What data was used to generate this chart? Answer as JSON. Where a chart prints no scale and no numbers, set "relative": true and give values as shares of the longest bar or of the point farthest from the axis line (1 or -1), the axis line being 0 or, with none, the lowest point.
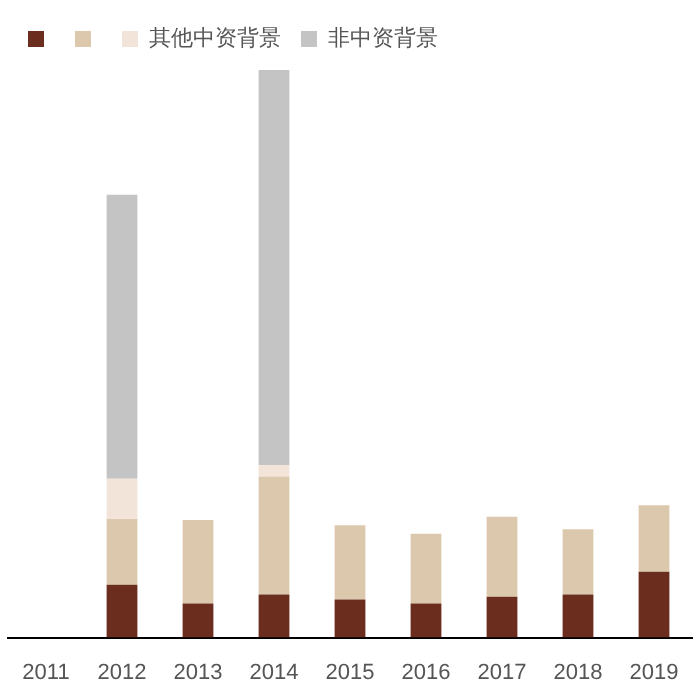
{
  "chart_data": {
    "type": "bar",
    "stacked": true,
    "relative": true,
    "legend": "top",
    "grid": false,
    "categories": [
      "2011",
      "2012",
      "2013",
      "2014",
      "2015",
      "2016",
      "2017",
      "2018",
      "2019"
    ],
    "series": [
      {
        "color": "#6b2e1e",
        "values": [
          0,
          0.093,
          0.06,
          0.076,
          0.067,
          0.06,
          0.072,
          0.076,
          0.116
        ]
      },
      {
        "color": "#dcc8ad",
        "values": [
          0,
          0.116,
          0.147,
          0.208,
          0.131,
          0.123,
          0.141,
          0.115,
          0.117
        ]
      },
      {
        "name": "其他中资背景",
        "color": "#f3e4d9",
        "values": [
          0,
          0.071,
          0,
          0.02,
          0,
          0,
          0,
          0,
          0
        ]
      },
      {
        "name": "非中资背景",
        "color": "#c4c4c4",
        "values": [
          null,
          0.5,
          null,
          0.696,
          null,
          null,
          null,
          null,
          null
        ]
      }
    ]
  }
}
